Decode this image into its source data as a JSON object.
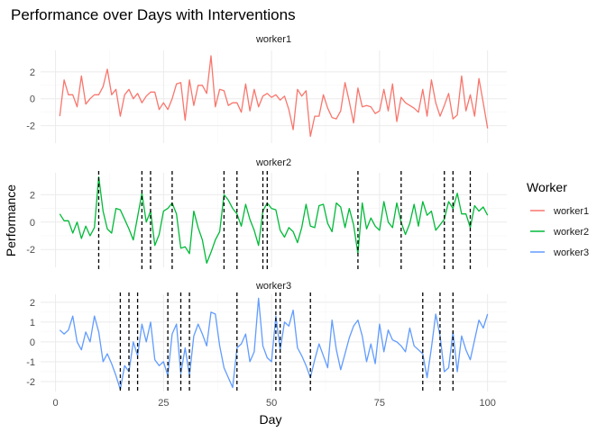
{
  "chart_data": {
    "type": "line",
    "title": "Performance over Days with Interventions",
    "xlabel": "Day",
    "ylabel": "Performance",
    "xlim": [
      1,
      100
    ],
    "xticks": [
      0,
      25,
      50,
      75,
      100
    ],
    "grid": true,
    "legend": {
      "title": "Worker",
      "placement": "right",
      "entries": [
        "worker1",
        "worker2",
        "worker3"
      ]
    },
    "colors": {
      "worker1": "#F8766D",
      "worker2": "#00BA38",
      "worker3": "#619CFF"
    },
    "x": [
      1,
      2,
      3,
      4,
      5,
      6,
      7,
      8,
      9,
      10,
      11,
      12,
      13,
      14,
      15,
      16,
      17,
      18,
      19,
      20,
      21,
      22,
      23,
      24,
      25,
      26,
      27,
      28,
      29,
      30,
      31,
      32,
      33,
      34,
      35,
      36,
      37,
      38,
      39,
      40,
      41,
      42,
      43,
      44,
      45,
      46,
      47,
      48,
      49,
      50,
      51,
      52,
      53,
      54,
      55,
      56,
      57,
      58,
      59,
      60,
      61,
      62,
      63,
      64,
      65,
      66,
      67,
      68,
      69,
      70,
      71,
      72,
      73,
      74,
      75,
      76,
      77,
      78,
      79,
      80,
      81,
      82,
      83,
      84,
      85,
      86,
      87,
      88,
      89,
      90,
      91,
      92,
      93,
      94,
      95,
      96,
      97,
      98,
      99,
      100
    ],
    "panels": [
      {
        "name": "worker1",
        "ylim": [
          -3.3,
          3.6
        ],
        "yticks": [
          -2,
          0,
          2
        ],
        "interventions": [],
        "values": [
          -1.3,
          1.4,
          0.3,
          0.3,
          -0.6,
          1.7,
          -0.4,
          0.0,
          0.3,
          0.3,
          0.9,
          2.2,
          0.3,
          0.7,
          -1.3,
          0.3,
          0.7,
          0.0,
          0.4,
          -0.3,
          0.2,
          0.5,
          0.5,
          -0.8,
          -0.3,
          -0.8,
          0.0,
          1.1,
          1.2,
          -1.6,
          1.4,
          -0.5,
          1.0,
          1.0,
          0.4,
          3.2,
          -0.6,
          0.7,
          0.6,
          -0.5,
          -0.3,
          -0.3,
          -1.0,
          1.1,
          -0.9,
          0.7,
          -0.6,
          0.2,
          0.4,
          0.1,
          0.3,
          -0.1,
          0.2,
          -0.8,
          -2.3,
          0.7,
          0.2,
          0.6,
          -2.8,
          -1.3,
          -1.3,
          0.3,
          -0.7,
          -1.4,
          -1.5,
          -0.9,
          1.2,
          -0.2,
          -1.8,
          0.8,
          -0.6,
          -0.5,
          -0.6,
          -1.1,
          -0.9,
          0.7,
          -0.9,
          1.1,
          -1.7,
          0.1,
          -0.3,
          -0.5,
          -0.7,
          -1.0,
          0.7,
          -1.3,
          1.4,
          -0.3,
          -1.3,
          -0.5,
          0.4,
          -1.5,
          -1.2,
          1.7,
          -0.9,
          0.3,
          -1.3,
          1.5,
          -0.3,
          -2.2
        ]
      },
      {
        "name": "worker2",
        "ylim": [
          -3.3,
          3.6
        ],
        "yticks": [
          -2,
          0,
          2
        ],
        "interventions": [
          10,
          20,
          22,
          27,
          39,
          42,
          48,
          49,
          70,
          80,
          90,
          92,
          96
        ],
        "values": [
          0.6,
          0.1,
          0.1,
          -0.8,
          0.0,
          -1.2,
          -0.3,
          -1.0,
          -0.4,
          3.3,
          0.8,
          -0.5,
          -0.8,
          1.0,
          0.9,
          0.2,
          -0.5,
          -1.3,
          0.4,
          2.1,
          0.0,
          0.8,
          -1.7,
          -0.9,
          0.8,
          1.0,
          1.4,
          0.6,
          -1.9,
          -1.8,
          -2.3,
          0.8,
          -0.4,
          -1.3,
          -3.0,
          -2.2,
          -1.3,
          -0.7,
          2.0,
          1.6,
          1.0,
          0.6,
          -0.3,
          1.3,
          0.2,
          -0.6,
          -1.7,
          0.8,
          1.4,
          1.0,
          0.9,
          -0.6,
          -1.1,
          -0.4,
          -0.7,
          -1.5,
          -0.4,
          1.3,
          -0.3,
          -0.4,
          1.2,
          1.3,
          -0.1,
          -0.7,
          1.4,
          1.1,
          -0.4,
          1.0,
          -0.2,
          -2.3,
          1.4,
          -0.5,
          0.3,
          -0.3,
          -0.6,
          1.5,
          0.0,
          -0.4,
          1.4,
          0.0,
          -0.9,
          -0.1,
          1.3,
          -0.3,
          1.5,
          0.5,
          0.8,
          -0.6,
          -0.2,
          0.2,
          1.5,
          1.0,
          2.1,
          0.6,
          0.6,
          -0.4,
          1.2,
          0.8,
          1.1,
          0.5
        ]
      },
      {
        "name": "worker3",
        "ylim": [
          -2.5,
          2.4
        ],
        "yticks": [
          -2,
          -1,
          0,
          1,
          2
        ],
        "interventions": [
          15,
          17,
          19,
          26,
          29,
          31,
          42,
          51,
          52,
          59,
          85,
          89,
          92
        ],
        "values": [
          0.6,
          0.4,
          0.6,
          1.3,
          0.0,
          -0.4,
          0.5,
          0.0,
          1.3,
          0.5,
          -1.0,
          -0.6,
          -1.1,
          -1.7,
          -2.4,
          -1.2,
          -1.5,
          0.0,
          -0.7,
          0.9,
          0.0,
          1.0,
          -0.9,
          -1.2,
          -1.0,
          -1.7,
          0.4,
          0.9,
          -1.6,
          -0.3,
          -1.7,
          0.3,
          0.9,
          0.4,
          -0.2,
          1.5,
          1.4,
          -0.2,
          -1.3,
          -1.8,
          -2.3,
          -0.3,
          -0.1,
          0.4,
          -1.0,
          -0.5,
          2.2,
          -0.2,
          -0.8,
          -1.0,
          1.3,
          -0.4,
          1.0,
          0.8,
          1.6,
          -0.3,
          -0.7,
          -1.2,
          -1.8,
          -0.9,
          -0.1,
          -0.7,
          -1.3,
          1.1,
          -0.4,
          -1.4,
          -0.6,
          0.2,
          0.8,
          1.1,
          0.3,
          -1.0,
          -0.1,
          -1.1,
          0.9,
          -0.5,
          0.6,
          0.1,
          0.0,
          -0.2,
          -0.5,
          0.7,
          -0.2,
          -0.4,
          -0.6,
          -1.8,
          -0.3,
          1.4,
          0.3,
          -1.5,
          -1.3,
          0.5,
          -1.5,
          0.3,
          -0.4,
          -0.9,
          0.1,
          1.1,
          0.7,
          1.4
        ]
      }
    ]
  }
}
